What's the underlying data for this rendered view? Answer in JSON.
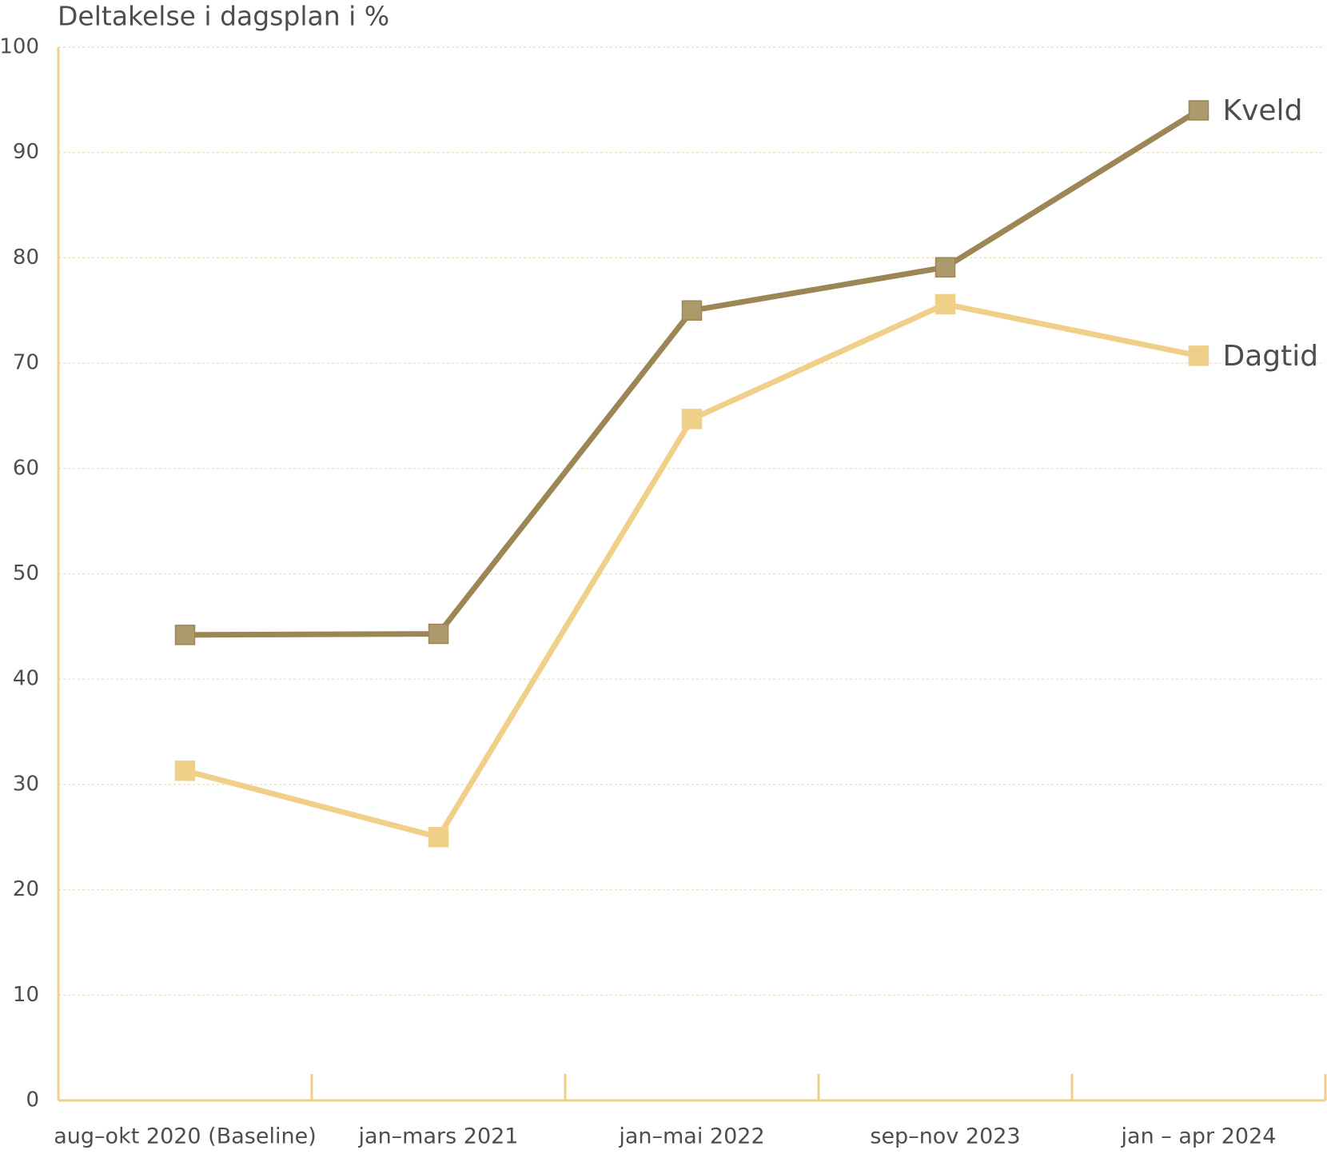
{
  "chart_data": {
    "type": "line",
    "y_axis_label": "Deltakelse i dagsplan i %",
    "categories": [
      "aug–okt 2020 (Baseline)",
      "jan–mars 2021",
      "jan–mai 2022",
      "sep–nov 2023",
      "jan – apr 2024"
    ],
    "series": [
      {
        "name": "Kveld",
        "color": "#9c8655",
        "marker_color": "#ad9a6c",
        "values": [
          44.2,
          44.3,
          75,
          79.1,
          94
        ]
      },
      {
        "name": "Dagtid",
        "color": "#f0cf88",
        "marker_color": "#f0cf88",
        "values": [
          31.3,
          25,
          64.7,
          75.6,
          70.7
        ]
      }
    ],
    "ylim": [
      0,
      100
    ],
    "yticks": [
      0,
      10,
      20,
      30,
      40,
      50,
      60,
      70,
      80,
      90,
      100
    ],
    "grid": true
  }
}
